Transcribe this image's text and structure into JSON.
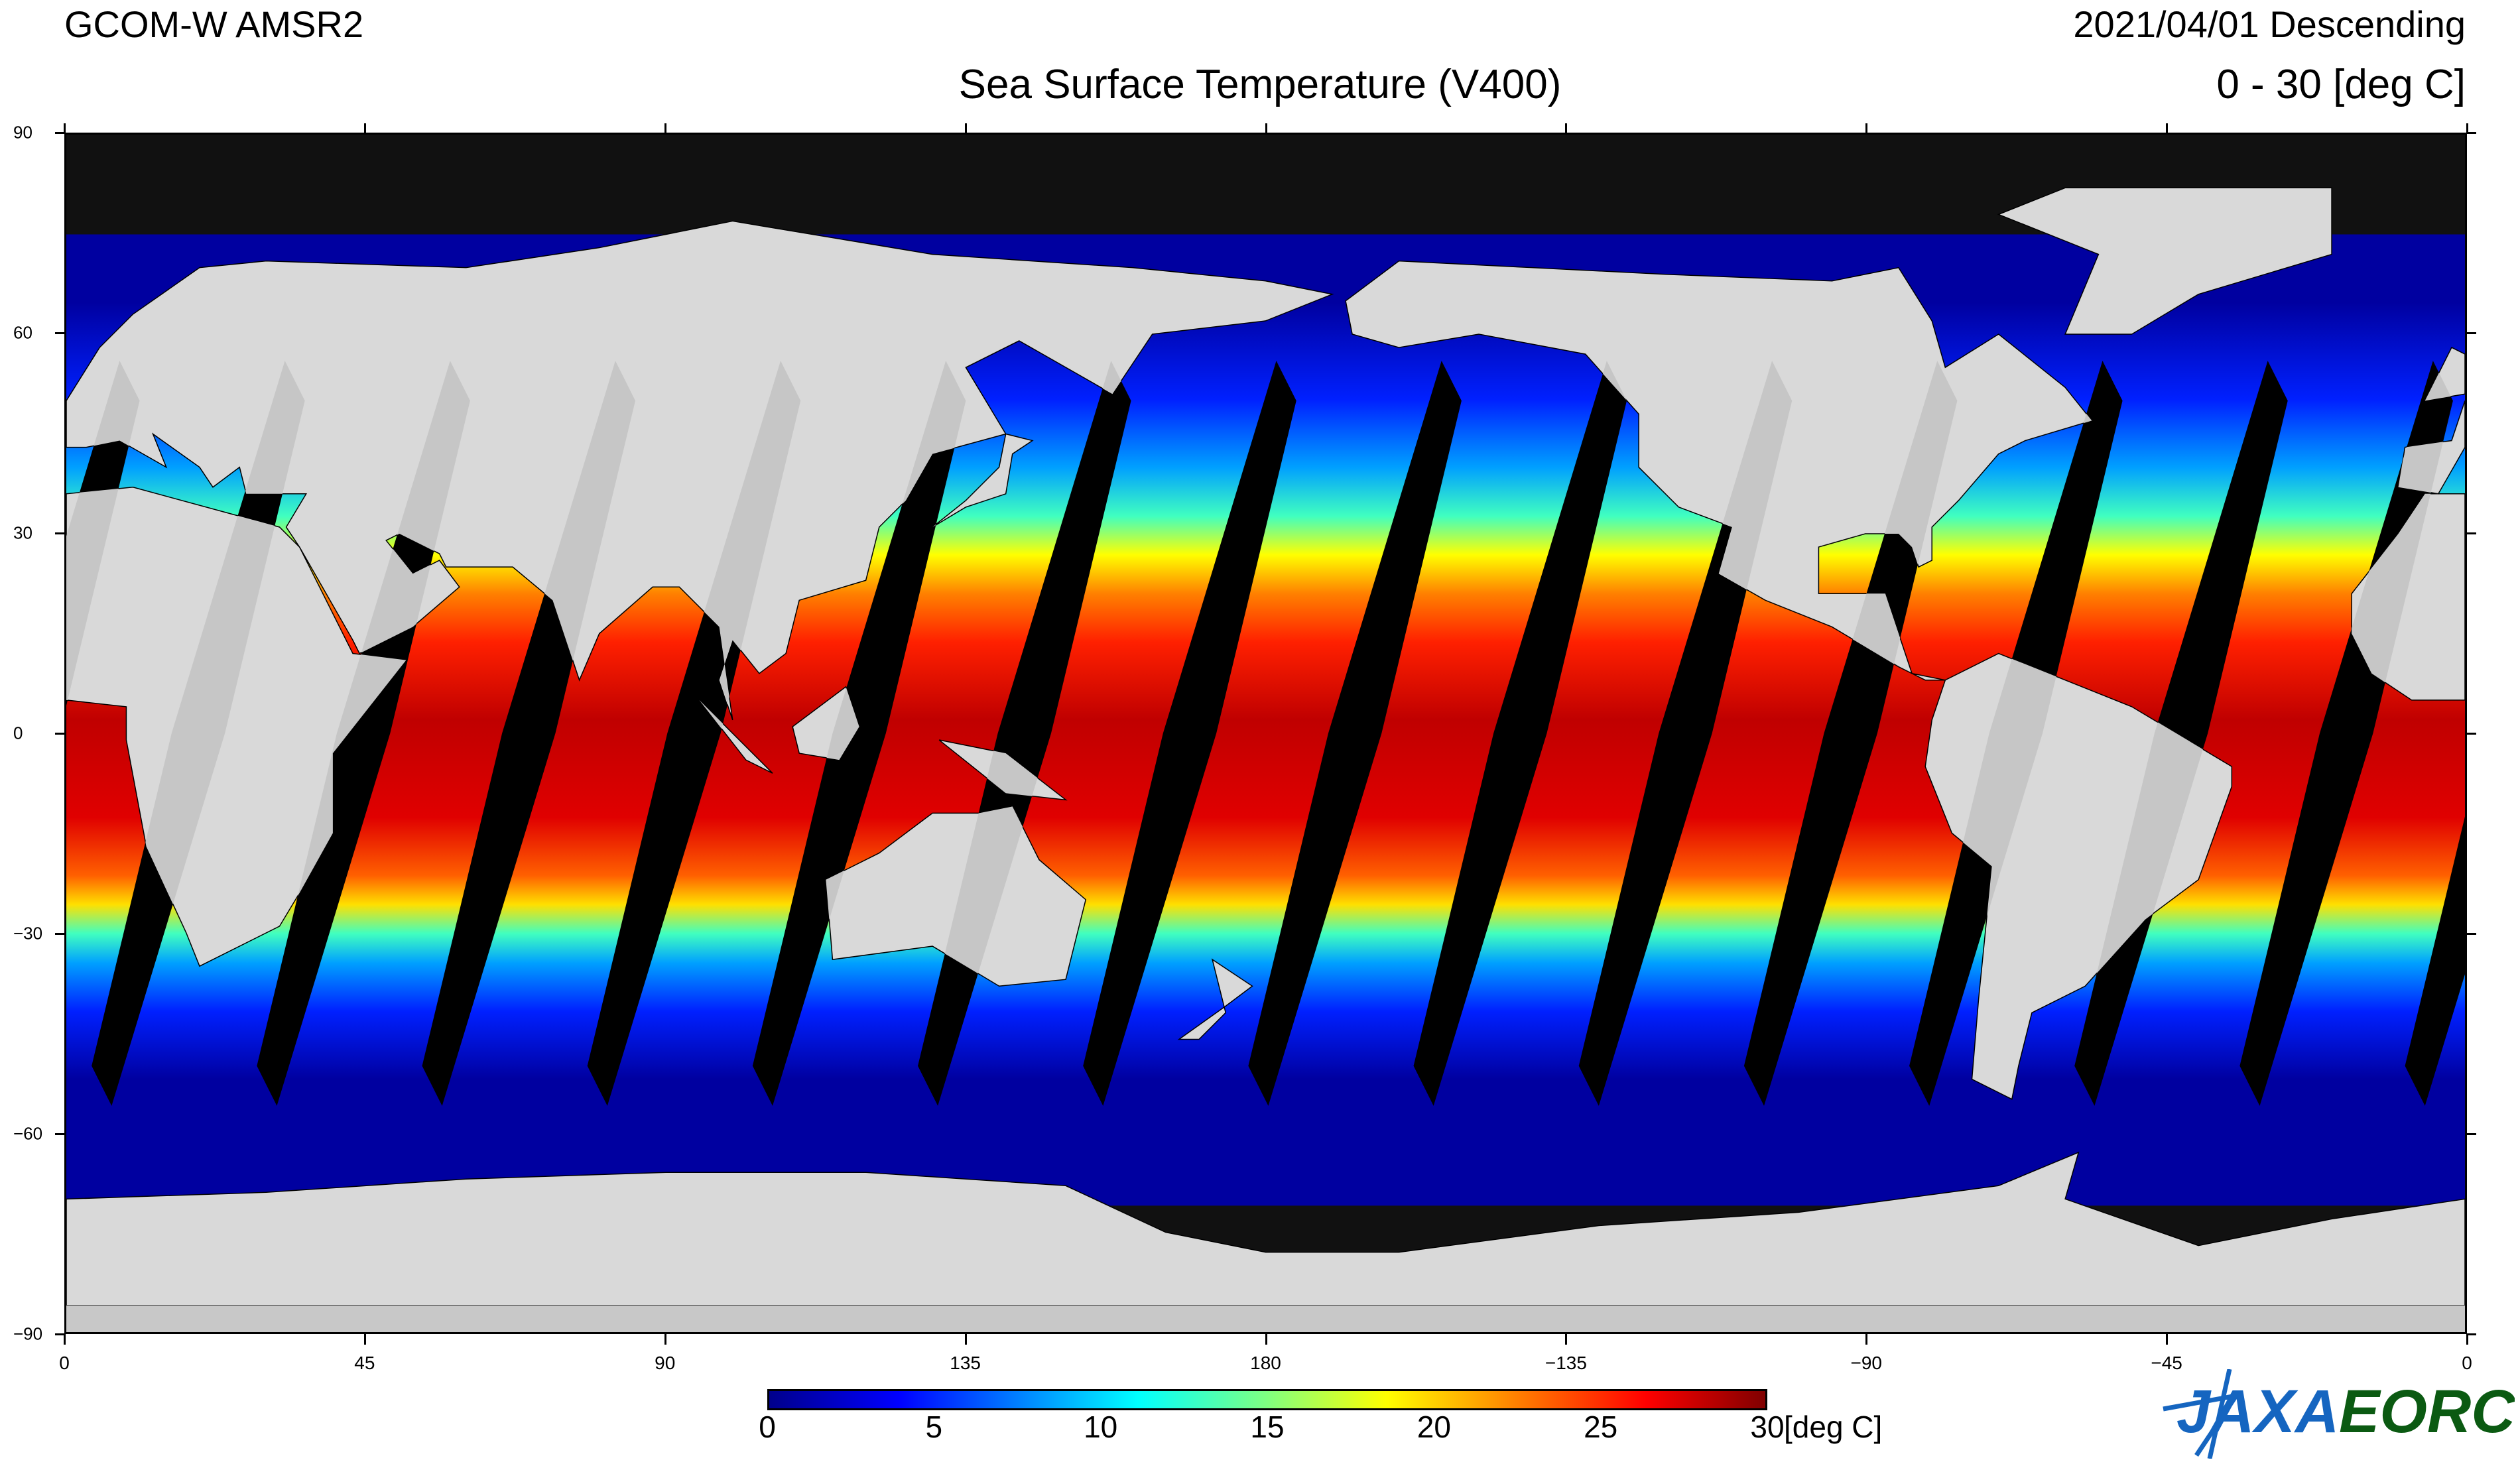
{
  "header": {
    "satellite": "GCOM-W  AMSR2",
    "date_pass": "2021/04/01  Descending",
    "title": "Sea Surface Temperature (V400)",
    "range": "0  - 30 [deg C]"
  },
  "axes": {
    "lat_labels": [
      "90",
      "60",
      "30",
      "0",
      "−30",
      "−60",
      "−90"
    ],
    "lon_labels": [
      "0",
      "45",
      "90",
      "135",
      "180",
      "−135",
      "−90",
      "−45",
      "0"
    ]
  },
  "colorbar": {
    "ticks": [
      "0",
      "5",
      "10",
      "15",
      "20",
      "25",
      "30"
    ],
    "unit": "[deg C]",
    "min": 0,
    "max": 30
  },
  "logo": {
    "text_jaxa": "JAXA",
    "text_eorc": "EORC",
    "jaxa_color": "#1565c0",
    "eorc_color": "#0b5a12"
  },
  "colors": {
    "land": "#d9d9d9",
    "no_data": "#000000",
    "sea_ice": "#1a1a1a"
  }
}
